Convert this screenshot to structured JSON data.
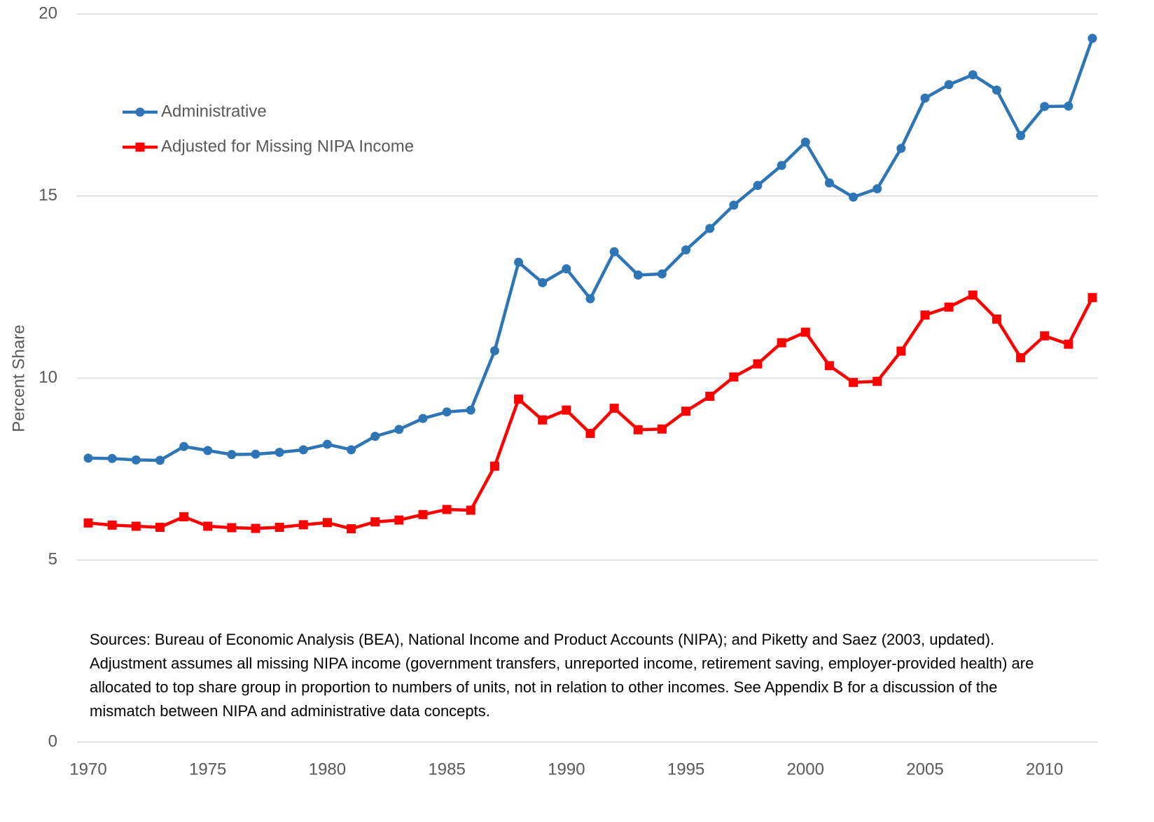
{
  "chart_data": {
    "type": "line",
    "ylabel": "Percent Share",
    "annotation": "Sources: Bureau of Economic Analysis (BEA), National Income and Product Accounts (NIPA); and Piketty and Saez (2003, updated). Adjustment assumes all missing NIPA income (government transfers, unreported income, retirement saving, employer-provided health) are allocated to top share group in proportion to numbers of units, not in relation to other incomes. See Appendix B for a discussion of the mismatch between NIPA and administrative data concepts.",
    "x": [
      1970,
      1971,
      1972,
      1973,
      1974,
      1975,
      1976,
      1977,
      1978,
      1979,
      1980,
      1981,
      1982,
      1983,
      1984,
      1985,
      1986,
      1987,
      1988,
      1989,
      1990,
      1991,
      1992,
      1993,
      1994,
      1995,
      1996,
      1997,
      1998,
      1999,
      2000,
      2001,
      2002,
      2003,
      2004,
      2005,
      2006,
      2007,
      2008,
      2009,
      2010,
      2011,
      2012
    ],
    "series": [
      {
        "name": "Administrative",
        "color": "#2e75b6",
        "marker": "circle",
        "values": [
          7.8,
          7.79,
          7.75,
          7.74,
          8.12,
          8.01,
          7.9,
          7.91,
          7.96,
          8.03,
          8.18,
          8.03,
          8.4,
          8.59,
          8.89,
          9.07,
          9.12,
          10.75,
          13.18,
          12.62,
          13.0,
          12.18,
          13.47,
          12.83,
          12.86,
          13.52,
          14.11,
          14.75,
          15.29,
          15.84,
          16.48,
          15.36,
          14.97,
          15.2,
          16.31,
          17.69,
          18.06,
          18.33,
          17.91,
          16.66,
          17.46,
          17.47,
          19.33
        ]
      },
      {
        "name": "Adjusted for Missing NIPA Income",
        "color": "#ff0000",
        "marker": "square",
        "values": [
          6.02,
          5.96,
          5.93,
          5.9,
          6.19,
          5.93,
          5.89,
          5.87,
          5.9,
          5.97,
          6.03,
          5.86,
          6.05,
          6.1,
          6.25,
          6.39,
          6.37,
          7.58,
          9.42,
          8.85,
          9.12,
          8.48,
          9.17,
          8.58,
          8.6,
          9.09,
          9.5,
          10.03,
          10.39,
          10.97,
          11.26,
          10.34,
          9.88,
          9.91,
          10.74,
          11.73,
          11.95,
          12.28,
          11.62,
          10.56,
          11.16,
          10.93,
          12.21
        ]
      }
    ],
    "xlim": [
      1970,
      2012
    ],
    "xticks": [
      1970,
      1975,
      1980,
      1985,
      1990,
      1995,
      2000,
      2005,
      2010
    ],
    "ylim": [
      0,
      20
    ],
    "yticks": [
      0,
      5,
      10,
      15,
      20
    ],
    "grid": true,
    "legend": "upper left"
  }
}
